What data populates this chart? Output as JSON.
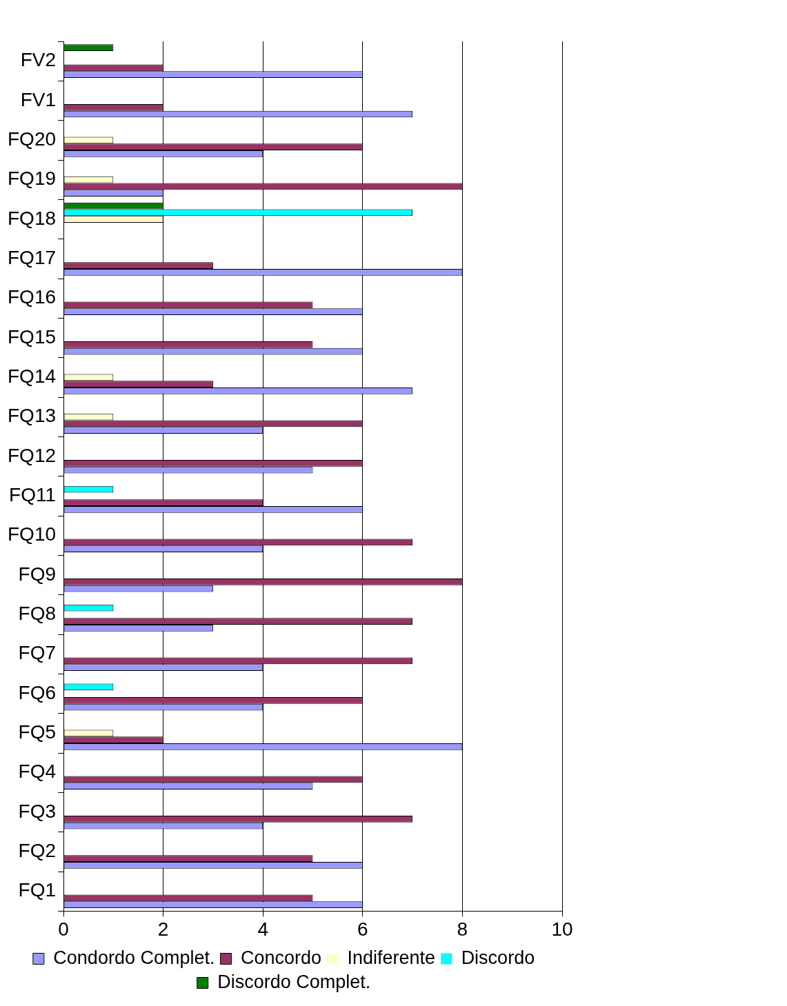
{
  "chart_data": {
    "type": "bar",
    "orientation": "horizontal",
    "categories": [
      "FV2",
      "FV1",
      "FQ20",
      "FQ19",
      "FQ18",
      "FQ17",
      "FQ16",
      "FQ15",
      "FQ14",
      "FQ13",
      "FQ12",
      "FQ11",
      "FQ10",
      "FQ9",
      "FQ8",
      "FQ7",
      "FQ6",
      "FQ5",
      "FQ4",
      "FQ3",
      "FQ2",
      "FQ1"
    ],
    "series": [
      {
        "name": "Condordo Complet.",
        "color": "#9999ff",
        "values": [
          6,
          7,
          4,
          2,
          0,
          8,
          6,
          6,
          7,
          4,
          5,
          6,
          4,
          3,
          3,
          4,
          4,
          8,
          5,
          4,
          6,
          6
        ]
      },
      {
        "name": "Concordo",
        "color": "#993366",
        "values": [
          2,
          2,
          6,
          8,
          0,
          3,
          5,
          5,
          3,
          6,
          6,
          4,
          7,
          8,
          7,
          7,
          6,
          2,
          6,
          7,
          5,
          5
        ]
      },
      {
        "name": "Indiferente",
        "color": "#ffffcc",
        "values": [
          0,
          0,
          1,
          1,
          2,
          0,
          0,
          0,
          1,
          1,
          0,
          0,
          0,
          0,
          0,
          0,
          0,
          1,
          0,
          0,
          0,
          0
        ]
      },
      {
        "name": "Discordo",
        "color": "#00ffff",
        "values": [
          0,
          0,
          0,
          0,
          7,
          0,
          0,
          0,
          0,
          0,
          0,
          1,
          0,
          0,
          1,
          0,
          1,
          0,
          0,
          0,
          0,
          0
        ]
      },
      {
        "name": "Discordo Complet.",
        "color": "#008000",
        "values": [
          1,
          0,
          0,
          0,
          2,
          0,
          0,
          0,
          0,
          0,
          0,
          0,
          0,
          0,
          0,
          0,
          0,
          0,
          0,
          0,
          0,
          0
        ]
      }
    ],
    "xlim": [
      0,
      10
    ],
    "xticks": [
      0,
      2,
      4,
      6,
      8,
      10
    ],
    "grid": "x",
    "legend": "bottom"
  }
}
